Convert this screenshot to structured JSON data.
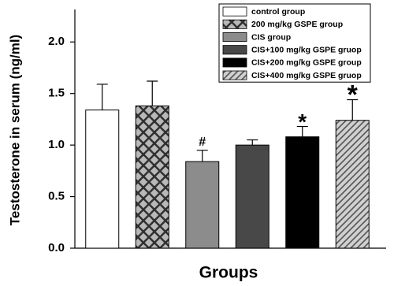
{
  "chart_data": {
    "type": "bar",
    "y_label": "Testosterone in serum (ng/ml)",
    "x_label": "Groups",
    "categories": [
      null
    ],
    "series": [
      {
        "name": "control group",
        "color": "#ffffff",
        "pattern": "solid",
        "values": [
          1.34
        ],
        "errors": [
          0.25
        ]
      },
      {
        "name": "200 mg/kg GSPE group",
        "color": "#b0b0b0",
        "pattern": "crosshatch",
        "values": [
          1.38
        ],
        "errors": [
          0.24
        ]
      },
      {
        "name": "CIS group",
        "color": "#8c8c8c",
        "pattern": "solid",
        "values": [
          0.84
        ],
        "errors": [
          0.11
        ],
        "annotation": "#"
      },
      {
        "name": "CIS+100 mg/kg GSPE gruop",
        "color": "#484848",
        "pattern": "solid",
        "values": [
          1.0
        ],
        "errors": [
          0.05
        ]
      },
      {
        "name": "CIS+200 mg/kg GSPE group",
        "color": "#000000",
        "pattern": "solid",
        "values": [
          1.08
        ],
        "errors": [
          0.1
        ],
        "annotation": "*"
      },
      {
        "name": "CIS+400 mg/kg GSPE gruop",
        "color": "#c8c8c8",
        "pattern": "diagonal",
        "values": [
          1.24
        ],
        "errors": [
          0.2
        ],
        "annotation": "*"
      }
    ],
    "ylim": [
      0,
      2.3
    ],
    "yticks": [
      {
        "value": 0,
        "label": "0.0"
      },
      0.5,
      {
        "value": 1,
        "label": "1.0"
      },
      1.5,
      {
        "value": 2,
        "label": "2.0"
      }
    ],
    "legend": "upper right",
    "grid": false
  }
}
